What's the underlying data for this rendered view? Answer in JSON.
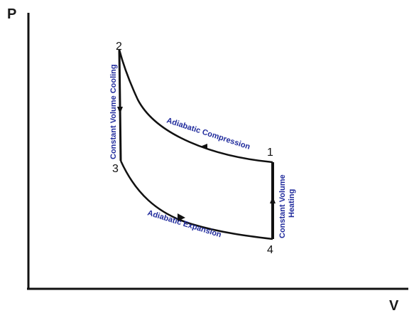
{
  "diagram": {
    "axes": {
      "y_label": "P",
      "x_label": "V"
    },
    "points": [
      {
        "id": "1",
        "label": "1"
      },
      {
        "id": "2",
        "label": "2"
      },
      {
        "id": "3",
        "label": "3"
      },
      {
        "id": "4",
        "label": "4"
      }
    ],
    "processes": {
      "compression": "Adiabatic Compression",
      "expansion": "Adiabatic Expansion",
      "cooling": "Constant Volume Cooling",
      "heating_line1": "Constant Volume",
      "heating_line2": "Heating"
    },
    "colors": {
      "curve": "#111111",
      "label_text": "#1f2a9c",
      "axis": "#111111"
    }
  }
}
